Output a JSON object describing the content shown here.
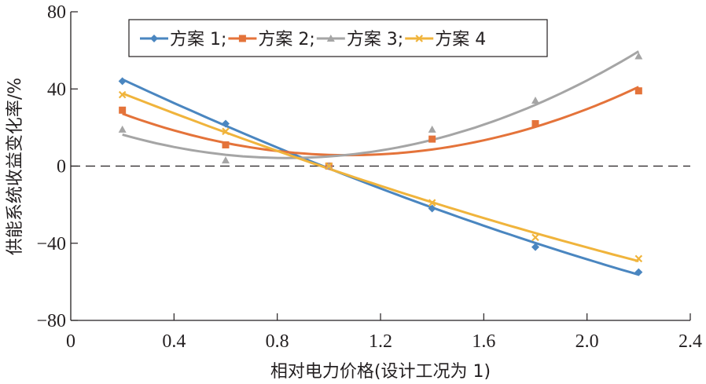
{
  "chart_data": {
    "type": "scatter",
    "title": "",
    "xlabel": "相对电力价格(设计工况为 1)",
    "ylabel": "供能系统收益变化率/%",
    "xlim": [
      0,
      2.4
    ],
    "ylim": [
      -80,
      80
    ],
    "xticks": [
      0,
      0.4,
      0.8,
      1.2,
      1.6,
      2.0,
      2.4
    ],
    "xtick_labels": [
      "0",
      "0.4",
      "0.8",
      "1.2",
      "1.6",
      "2.0",
      "2.4"
    ],
    "yticks": [
      80,
      40,
      0,
      -40,
      -80
    ],
    "ytick_labels": [
      "80",
      "40",
      "0",
      "−40",
      "−80"
    ],
    "grid": false,
    "reference_line": {
      "y": 0,
      "style": "dashed"
    },
    "legend": {
      "placement": "top",
      "separator": ";"
    },
    "x": [
      0.2,
      0.6,
      1.0,
      1.4,
      1.8,
      2.2
    ],
    "series": [
      {
        "name": "方案 1",
        "color": "#4a86c0",
        "marker": "diamond",
        "values": [
          44,
          22,
          0,
          -22,
          -42,
          -55
        ],
        "trend": "quadratic"
      },
      {
        "name": "方案 2",
        "color": "#e4733a",
        "marker": "square",
        "values": [
          29,
          11,
          0,
          14,
          22,
          39
        ],
        "trend": "quadratic"
      },
      {
        "name": "方案 3",
        "color": "#a5a5a5",
        "marker": "triangle",
        "values": [
          19,
          3,
          0,
          19,
          34,
          57
        ],
        "trend": "quadratic"
      },
      {
        "name": "方案 4",
        "color": "#f0b43c",
        "marker": "x",
        "values": [
          37,
          18,
          0,
          -19,
          -37,
          -48
        ],
        "trend": "quadratic"
      }
    ]
  }
}
